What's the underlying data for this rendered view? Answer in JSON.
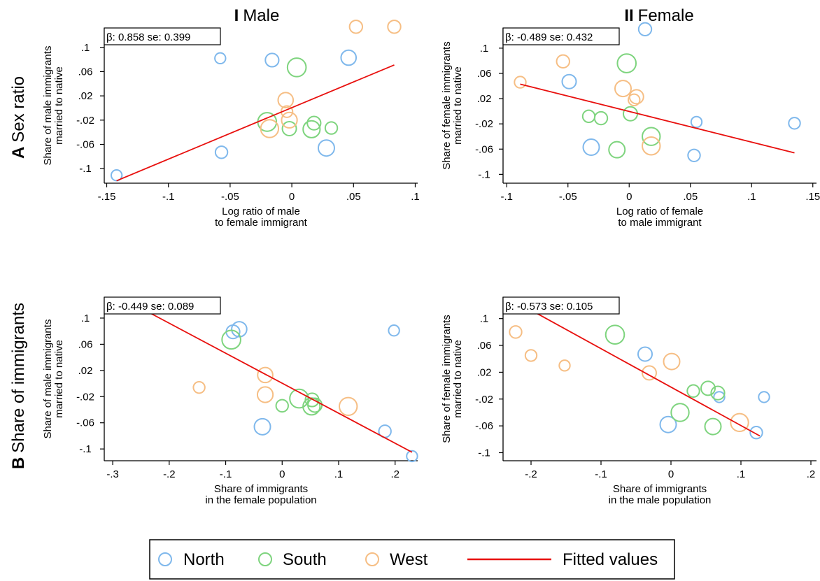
{
  "figure": {
    "column_titles": [
      {
        "bold": "I",
        "text": "Male"
      },
      {
        "bold": "II",
        "text": "Female"
      }
    ],
    "row_titles": [
      {
        "bold": "A",
        "text": "Sex ratio"
      },
      {
        "bold": "B",
        "text": "Share of immigrants"
      }
    ]
  },
  "legend": {
    "items": [
      {
        "label": "North",
        "color": "#7fb8ec",
        "kind": "circle"
      },
      {
        "label": "South",
        "color": "#7ed47e",
        "kind": "circle"
      },
      {
        "label": "West",
        "color": "#f6be84",
        "kind": "circle"
      },
      {
        "label": "Fitted values",
        "color": "#e8100e",
        "kind": "line"
      }
    ]
  },
  "chart_data": [
    {
      "type": "scatter",
      "panel": "A-I",
      "stat_label": "β: 0.858 se: 0.399",
      "ylabel": [
        "Share of male immigrants",
        "married to native"
      ],
      "xlabel": [
        "Log ratio of male",
        "to female immigrant"
      ],
      "xticks": [
        -0.15,
        -0.1,
        -0.05,
        0,
        0.05,
        0.1
      ],
      "xtick_labels": [
        "-.15",
        "-.1",
        "-.05",
        "0",
        ".05",
        ".1"
      ],
      "yticks": [
        -0.1,
        -0.06,
        -0.02,
        0.02,
        0.06,
        0.1
      ],
      "ytick_labels": [
        "-.1",
        "-.06",
        "-.02",
        ".02",
        ".06",
        ".1"
      ],
      "xlim": [
        -0.152,
        0.102
      ],
      "ylim": [
        -0.124,
        0.132
      ],
      "fit": {
        "x": [
          -0.142,
          0.083
        ],
        "y": [
          -0.12,
          0.071
        ]
      },
      "points": [
        {
          "region": "North",
          "x": -0.142,
          "y": -0.111,
          "size": 0.5
        },
        {
          "region": "North",
          "x": -0.058,
          "y": 0.082,
          "size": 0.5
        },
        {
          "region": "North",
          "x": -0.057,
          "y": -0.073,
          "size": 0.7
        },
        {
          "region": "North",
          "x": -0.016,
          "y": 0.079,
          "size": 0.9
        },
        {
          "region": "North",
          "x": 0.046,
          "y": 0.083,
          "size": 1.2
        },
        {
          "region": "North",
          "x": 0.028,
          "y": -0.066,
          "size": 1.4
        },
        {
          "region": "South",
          "x": 0.004,
          "y": 0.067,
          "size": 2.0
        },
        {
          "region": "South",
          "x": -0.02,
          "y": -0.023,
          "size": 2.0
        },
        {
          "region": "South",
          "x": 0.016,
          "y": -0.035,
          "size": 1.6
        },
        {
          "region": "South",
          "x": 0.018,
          "y": -0.025,
          "size": 0.9
        },
        {
          "region": "South",
          "x": -0.002,
          "y": -0.034,
          "size": 1.0
        },
        {
          "region": "South",
          "x": 0.032,
          "y": -0.033,
          "size": 0.7
        },
        {
          "region": "West",
          "x": 0.052,
          "y": 0.134,
          "size": 0.8
        },
        {
          "region": "West",
          "x": 0.083,
          "y": 0.134,
          "size": 0.8
        },
        {
          "region": "West",
          "x": -0.005,
          "y": 0.013,
          "size": 1.2
        },
        {
          "region": "West",
          "x": -0.002,
          "y": -0.02,
          "size": 1.3
        },
        {
          "region": "West",
          "x": -0.004,
          "y": -0.006,
          "size": 0.6
        },
        {
          "region": "West",
          "x": -0.018,
          "y": -0.034,
          "size": 1.8
        }
      ]
    },
    {
      "type": "scatter",
      "panel": "A-II",
      "stat_label": "β: -0.489 se: 0.432",
      "ylabel": [
        "Share of female immigrants",
        "married to native"
      ],
      "xlabel": [
        "Log ratio of female",
        "to male immigrant"
      ],
      "xticks": [
        -0.1,
        -0.05,
        0,
        0.05,
        0.1,
        0.15
      ],
      "xtick_labels": [
        "-.1",
        "-.05",
        "0",
        ".05",
        ".1",
        ".15"
      ],
      "yticks": [
        -0.1,
        -0.06,
        -0.02,
        0.02,
        0.06,
        0.1
      ],
      "ytick_labels": [
        "-.1",
        "-.06",
        "-.02",
        ".02",
        ".06",
        ".1"
      ],
      "xlim": [
        -0.103,
        0.153
      ],
      "ylim": [
        -0.114,
        0.132
      ],
      "fit": {
        "x": [
          -0.089,
          0.135
        ],
        "y": [
          0.043,
          -0.066
        ]
      },
      "points": [
        {
          "region": "North",
          "x": 0.013,
          "y": 0.13,
          "size": 0.8
        },
        {
          "region": "North",
          "x": -0.049,
          "y": 0.047,
          "size": 1.0
        },
        {
          "region": "North",
          "x": -0.031,
          "y": -0.057,
          "size": 1.4
        },
        {
          "region": "North",
          "x": 0.055,
          "y": -0.017,
          "size": 0.5
        },
        {
          "region": "North",
          "x": 0.053,
          "y": -0.07,
          "size": 0.7
        },
        {
          "region": "North",
          "x": 0.135,
          "y": -0.019,
          "size": 0.6
        },
        {
          "region": "South",
          "x": -0.002,
          "y": 0.076,
          "size": 2.0
        },
        {
          "region": "South",
          "x": -0.033,
          "y": -0.008,
          "size": 0.7
        },
        {
          "region": "South",
          "x": -0.023,
          "y": -0.011,
          "size": 0.8
        },
        {
          "region": "South",
          "x": 0.001,
          "y": -0.004,
          "size": 1.0
        },
        {
          "region": "South",
          "x": -0.01,
          "y": -0.061,
          "size": 1.4
        },
        {
          "region": "South",
          "x": 0.018,
          "y": -0.04,
          "size": 1.8
        },
        {
          "region": "West",
          "x": -0.089,
          "y": 0.046,
          "size": 0.6
        },
        {
          "region": "West",
          "x": -0.054,
          "y": 0.079,
          "size": 0.8
        },
        {
          "region": "West",
          "x": -0.005,
          "y": 0.036,
          "size": 1.4
        },
        {
          "region": "West",
          "x": 0.006,
          "y": 0.023,
          "size": 1.0
        },
        {
          "region": "West",
          "x": 0.004,
          "y": 0.018,
          "size": 0.6
        },
        {
          "region": "West",
          "x": 0.018,
          "y": -0.055,
          "size": 1.8
        }
      ]
    },
    {
      "type": "scatter",
      "panel": "B-I",
      "stat_label": "β: -0.449 se: 0.089",
      "ylabel": [
        "Share of male immigrants",
        "married to native"
      ],
      "xlabel": [
        "Share of immigrants",
        "in the female population"
      ],
      "xticks": [
        -0.3,
        -0.2,
        -0.1,
        0,
        0.1,
        0.2
      ],
      "xtick_labels": [
        "-.3",
        "-.2",
        "-.1",
        "0",
        ".1",
        ".2"
      ],
      "yticks": [
        -0.1,
        -0.06,
        -0.02,
        0.02,
        0.06,
        0.1
      ],
      "ytick_labels": [
        "-.1",
        "-.06",
        "-.02",
        ".02",
        ".06",
        ".1"
      ],
      "xlim": [
        -0.315,
        0.24
      ],
      "ylim": [
        -0.118,
        0.132
      ],
      "fit": {
        "x": [
          -0.265,
          0.23
        ],
        "y": [
          0.122,
          -0.105
        ]
      },
      "points": [
        {
          "region": "North",
          "x": -0.087,
          "y": 0.079,
          "size": 0.9
        },
        {
          "region": "North",
          "x": -0.076,
          "y": 0.083,
          "size": 1.2
        },
        {
          "region": "North",
          "x": 0.198,
          "y": 0.081,
          "size": 0.5
        },
        {
          "region": "North",
          "x": -0.035,
          "y": -0.066,
          "size": 1.4
        },
        {
          "region": "North",
          "x": 0.182,
          "y": -0.073,
          "size": 0.7
        },
        {
          "region": "North",
          "x": 0.23,
          "y": -0.111,
          "size": 0.5
        },
        {
          "region": "South",
          "x": -0.09,
          "y": 0.067,
          "size": 2.0
        },
        {
          "region": "South",
          "x": 0.03,
          "y": -0.023,
          "size": 2.0
        },
        {
          "region": "South",
          "x": 0.053,
          "y": -0.025,
          "size": 0.9
        },
        {
          "region": "South",
          "x": 0.058,
          "y": -0.033,
          "size": 1.0
        },
        {
          "region": "South",
          "x": 0.052,
          "y": -0.035,
          "size": 1.6
        },
        {
          "region": "South",
          "x": 0.0,
          "y": -0.034,
          "size": 0.7
        },
        {
          "region": "West",
          "x": -0.147,
          "y": -0.006,
          "size": 0.6
        },
        {
          "region": "West",
          "x": -0.03,
          "y": 0.013,
          "size": 1.2
        },
        {
          "region": "West",
          "x": -0.03,
          "y": -0.017,
          "size": 1.3
        },
        {
          "region": "West",
          "x": 0.117,
          "y": -0.035,
          "size": 1.8
        }
      ]
    },
    {
      "type": "scatter",
      "panel": "B-II",
      "stat_label": "β: -0.573 se: 0.105",
      "ylabel": [
        "Share of female immigrants",
        "married to native"
      ],
      "xlabel": [
        "Share of immigrants",
        "in the male population"
      ],
      "xticks": [
        -0.2,
        -0.1,
        0,
        0.1,
        0.2
      ],
      "xtick_labels": [
        "-.2",
        "-.1",
        "0",
        ".1",
        ".2"
      ],
      "yticks": [
        -0.1,
        -0.06,
        -0.02,
        0.02,
        0.06,
        0.1
      ],
      "ytick_labels": [
        "-.1",
        "-.06",
        "-.02",
        ".02",
        ".06",
        ".1"
      ],
      "xlim": [
        -0.24,
        0.208
      ],
      "ylim": [
        -0.112,
        0.132
      ],
      "fit": {
        "x": [
          -0.227,
          0.127
        ],
        "y": [
          0.128,
          -0.075
        ]
      },
      "points": [
        {
          "region": "North",
          "x": -0.037,
          "y": 0.047,
          "size": 1.0
        },
        {
          "region": "North",
          "x": -0.004,
          "y": -0.058,
          "size": 1.4
        },
        {
          "region": "North",
          "x": 0.069,
          "y": -0.017,
          "size": 0.5
        },
        {
          "region": "North",
          "x": 0.122,
          "y": -0.07,
          "size": 0.7
        },
        {
          "region": "North",
          "x": 0.133,
          "y": -0.017,
          "size": 0.5
        },
        {
          "region": "South",
          "x": -0.08,
          "y": 0.076,
          "size": 2.0
        },
        {
          "region": "South",
          "x": 0.013,
          "y": -0.04,
          "size": 1.8
        },
        {
          "region": "South",
          "x": 0.032,
          "y": -0.008,
          "size": 0.7
        },
        {
          "region": "South",
          "x": 0.053,
          "y": -0.004,
          "size": 1.0
        },
        {
          "region": "South",
          "x": 0.067,
          "y": -0.011,
          "size": 0.9
        },
        {
          "region": "South",
          "x": 0.06,
          "y": -0.061,
          "size": 1.4
        },
        {
          "region": "West",
          "x": -0.222,
          "y": 0.08,
          "size": 0.7
        },
        {
          "region": "West",
          "x": -0.2,
          "y": 0.045,
          "size": 0.6
        },
        {
          "region": "West",
          "x": -0.152,
          "y": 0.03,
          "size": 0.5
        },
        {
          "region": "West",
          "x": 0.001,
          "y": 0.036,
          "size": 1.4
        },
        {
          "region": "West",
          "x": -0.031,
          "y": 0.019,
          "size": 1.0
        },
        {
          "region": "West",
          "x": 0.098,
          "y": -0.055,
          "size": 1.8
        }
      ]
    }
  ]
}
